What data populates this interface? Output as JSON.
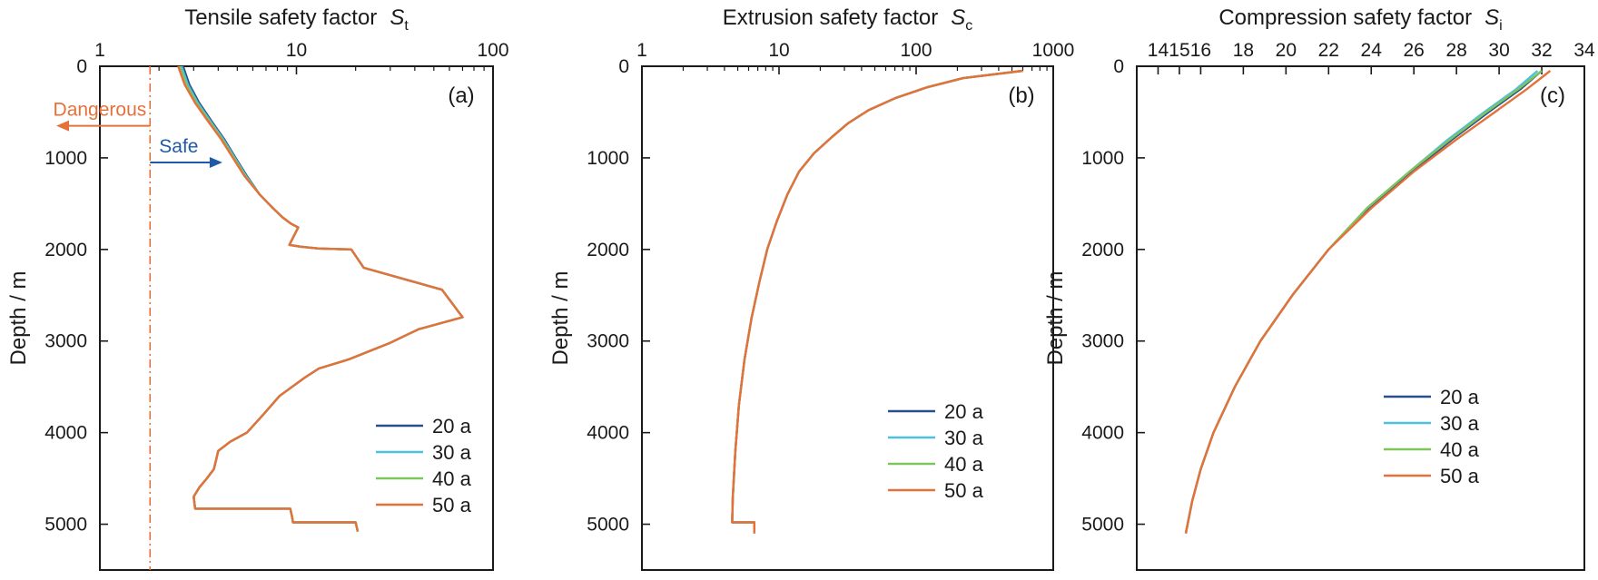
{
  "chart_data": [
    {
      "type": "line",
      "panel_label": "(a)",
      "xlabel": "Tensile safety factor",
      "xlabel_symbol": "S",
      "xlabel_subscript": "t",
      "ylabel": "Depth / m",
      "x_scale": "log",
      "xlim": [
        1,
        100
      ],
      "x_ticks": [
        "1",
        "10",
        "100"
      ],
      "ylim": [
        5500,
        0
      ],
      "y_ticks": [
        "0",
        "1000",
        "2000",
        "3000",
        "4000",
        "5000"
      ],
      "x_axis_position": "top",
      "legend_position": "lower-right",
      "series": [
        {
          "name": "20 a",
          "color": "#2b4f8c",
          "x": [
            2.65,
            2.85,
            3.2,
            3.7,
            4.3,
            4.9,
            5.6,
            6.5,
            7.6,
            8.5,
            9.4,
            10.2,
            9.2,
            10.5,
            13.0,
            19.0,
            22.0,
            55.0,
            70.0,
            42.0,
            35.0,
            30.0,
            18.5,
            13.0,
            11.0,
            9.5,
            8.2,
            6.8,
            5.6,
            4.6,
            4.0,
            3.9,
            3.8,
            3.5,
            3.2,
            3.0,
            3.05,
            9.3,
            9.5,
            9.6,
            20.0,
            20.5
          ],
          "y": [
            0,
            200,
            400,
            600,
            800,
            1000,
            1200,
            1400,
            1550,
            1650,
            1720,
            1760,
            1950,
            1970,
            1990,
            2000,
            2200,
            2440,
            2740,
            2870,
            2950,
            3020,
            3200,
            3300,
            3400,
            3500,
            3600,
            3800,
            4000,
            4100,
            4200,
            4300,
            4400,
            4500,
            4600,
            4700,
            4830,
            4830,
            4920,
            4980,
            4980,
            5080
          ]
        },
        {
          "name": "30 a",
          "color": "#4fbfe0",
          "x": [
            2.6,
            2.8,
            3.15,
            3.65,
            4.25,
            4.85,
            5.55,
            6.5,
            7.6,
            8.5,
            9.4,
            10.2,
            9.2,
            10.5,
            13.0,
            19.0,
            22.0,
            55.0,
            70.0,
            42.0,
            35.0,
            30.0,
            18.5,
            13.0,
            11.0,
            9.5,
            8.2,
            6.8,
            5.6,
            4.6,
            4.0,
            3.9,
            3.8,
            3.5,
            3.2,
            3.0,
            3.05,
            9.3,
            9.5,
            9.6,
            20.0,
            20.5
          ],
          "y": [
            0,
            200,
            400,
            600,
            800,
            1000,
            1200,
            1400,
            1550,
            1650,
            1720,
            1760,
            1950,
            1970,
            1990,
            2000,
            2200,
            2440,
            2740,
            2870,
            2950,
            3020,
            3200,
            3300,
            3400,
            3500,
            3600,
            3800,
            4000,
            4100,
            4200,
            4300,
            4400,
            4500,
            4600,
            4700,
            4830,
            4830,
            4920,
            4980,
            4980,
            5080
          ]
        },
        {
          "name": "40 a",
          "color": "#7ec55a",
          "x": [
            2.55,
            2.75,
            3.1,
            3.6,
            4.2,
            4.8,
            5.5,
            6.5,
            7.6,
            8.5,
            9.4,
            10.2,
            9.2,
            10.5,
            13.0,
            19.0,
            22.0,
            55.0,
            70.0,
            42.0,
            35.0,
            30.0,
            18.5,
            13.0,
            11.0,
            9.5,
            8.2,
            6.8,
            5.6,
            4.6,
            4.0,
            3.9,
            3.8,
            3.5,
            3.2,
            3.0,
            3.05,
            9.3,
            9.5,
            9.6,
            20.0,
            20.5
          ],
          "y": [
            0,
            200,
            400,
            600,
            800,
            1000,
            1200,
            1400,
            1550,
            1650,
            1720,
            1760,
            1950,
            1970,
            1990,
            2000,
            2200,
            2440,
            2740,
            2870,
            2950,
            3020,
            3200,
            3300,
            3400,
            3500,
            3600,
            3800,
            4000,
            4100,
            4200,
            4300,
            4400,
            4500,
            4600,
            4700,
            4830,
            4830,
            4920,
            4980,
            4980,
            5080
          ]
        },
        {
          "name": "50 a",
          "color": "#e5713a",
          "x": [
            2.5,
            2.7,
            3.05,
            3.55,
            4.15,
            4.75,
            5.45,
            6.5,
            7.6,
            8.5,
            9.4,
            10.2,
            9.2,
            10.5,
            13.0,
            19.0,
            22.0,
            55.0,
            70.0,
            42.0,
            35.0,
            30.0,
            18.5,
            13.0,
            11.0,
            9.5,
            8.2,
            6.8,
            5.6,
            4.6,
            4.0,
            3.9,
            3.8,
            3.5,
            3.2,
            3.0,
            3.05,
            9.3,
            9.5,
            9.6,
            20.0,
            20.5
          ],
          "y": [
            0,
            200,
            400,
            600,
            800,
            1000,
            1200,
            1400,
            1550,
            1650,
            1720,
            1760,
            1950,
            1970,
            1990,
            2000,
            2200,
            2440,
            2740,
            2870,
            2950,
            3020,
            3200,
            3300,
            3400,
            3500,
            3600,
            3800,
            4000,
            4100,
            4200,
            4300,
            4400,
            4500,
            4600,
            4700,
            4830,
            4830,
            4920,
            4980,
            4980,
            5080
          ]
        }
      ],
      "reference_line": {
        "x": 1.8,
        "color": "#e5713a",
        "style": "dash-dot"
      },
      "annotations": [
        {
          "text": "Dangerous",
          "color": "#e5713a",
          "y": 650,
          "x_from": 1.8,
          "direction": "left"
        },
        {
          "text": "Safe",
          "color": "#1f5aa6",
          "y": 1050,
          "x_from": 1.8,
          "x_to": 4.2,
          "direction": "right"
        }
      ]
    },
    {
      "type": "line",
      "panel_label": "(b)",
      "xlabel": "Extrusion safety factor",
      "xlabel_symbol": "S",
      "xlabel_subscript": "c",
      "ylabel": "Depth / m",
      "x_scale": "log",
      "xlim": [
        1,
        1000
      ],
      "x_ticks": [
        "1",
        "10",
        "100",
        "1000"
      ],
      "ylim": [
        5500,
        0
      ],
      "y_ticks": [
        "0",
        "1000",
        "2000",
        "3000",
        "4000",
        "5000"
      ],
      "x_axis_position": "top",
      "legend_position": "lower-right",
      "series": [
        {
          "name": "20 a",
          "color": "#2b4f8c",
          "x": [
            600,
            220,
            120,
            70,
            45,
            32,
            24,
            18,
            14,
            11.5,
            9.6,
            8.2,
            7.2,
            6.3,
            5.6,
            5.1,
            4.8,
            4.6,
            4.55,
            6.6,
            6.6
          ],
          "y": [
            50,
            130,
            230,
            350,
            480,
            620,
            780,
            950,
            1150,
            1400,
            1700,
            2000,
            2350,
            2750,
            3200,
            3700,
            4200,
            4700,
            4980,
            4980,
            5100
          ]
        },
        {
          "name": "30 a",
          "color": "#4fbfe0",
          "x": [
            600,
            220,
            120,
            70,
            45,
            32,
            24,
            18,
            14,
            11.5,
            9.6,
            8.2,
            7.2,
            6.3,
            5.6,
            5.1,
            4.8,
            4.6,
            4.55,
            6.6,
            6.6
          ],
          "y": [
            50,
            130,
            230,
            350,
            480,
            620,
            780,
            950,
            1150,
            1400,
            1700,
            2000,
            2350,
            2750,
            3200,
            3700,
            4200,
            4700,
            4980,
            4980,
            5100
          ]
        },
        {
          "name": "40 a",
          "color": "#7ec55a",
          "x": [
            600,
            220,
            120,
            70,
            45,
            32,
            24,
            18,
            14,
            11.5,
            9.6,
            8.2,
            7.2,
            6.3,
            5.6,
            5.1,
            4.8,
            4.6,
            4.55,
            6.6,
            6.6
          ],
          "y": [
            50,
            130,
            230,
            350,
            480,
            620,
            780,
            950,
            1150,
            1400,
            1700,
            2000,
            2350,
            2750,
            3200,
            3700,
            4200,
            4700,
            4980,
            4980,
            5100
          ]
        },
        {
          "name": "50 a",
          "color": "#e5713a",
          "x": [
            600,
            220,
            120,
            70,
            45,
            32,
            24,
            18,
            14,
            11.5,
            9.6,
            8.2,
            7.2,
            6.3,
            5.6,
            5.1,
            4.8,
            4.6,
            4.55,
            6.6,
            6.6
          ],
          "y": [
            50,
            130,
            230,
            350,
            480,
            620,
            780,
            950,
            1150,
            1400,
            1700,
            2000,
            2350,
            2750,
            3200,
            3700,
            4200,
            4700,
            4980,
            4980,
            5100
          ]
        }
      ]
    },
    {
      "type": "line",
      "panel_label": "(c)",
      "xlabel": "Compression safety factor",
      "xlabel_symbol": "S",
      "xlabel_subscript": "i",
      "ylabel": "Depth / m",
      "x_scale": "linear",
      "xlim": [
        13,
        34
      ],
      "x_ticks": [
        "14",
        "15",
        "16",
        "18",
        "20",
        "22",
        "24",
        "26",
        "28",
        "30",
        "32",
        "34"
      ],
      "ylim": [
        5500,
        0
      ],
      "y_ticks": [
        "0",
        "1000",
        "2000",
        "3000",
        "4000",
        "5000"
      ],
      "x_axis_position": "top",
      "legend_position": "center-right",
      "series": [
        {
          "name": "20 a",
          "color": "#2b4f8c",
          "x": [
            32.0,
            31.0,
            29.5,
            27.8,
            25.9,
            23.9,
            22.0,
            20.3,
            18.8,
            17.6,
            16.6,
            16.0,
            15.6,
            15.3
          ],
          "y": [
            50,
            250,
            500,
            800,
            1150,
            1550,
            2000,
            2500,
            3000,
            3500,
            4000,
            4400,
            4750,
            5100
          ]
        },
        {
          "name": "30 a",
          "color": "#4fbfe0",
          "x": [
            31.8,
            30.8,
            29.3,
            27.6,
            25.8,
            23.8,
            22.0,
            20.3,
            18.8,
            17.6,
            16.6,
            16.0,
            15.6,
            15.3
          ],
          "y": [
            50,
            250,
            500,
            800,
            1150,
            1550,
            2000,
            2500,
            3000,
            3500,
            4000,
            4400,
            4750,
            5100
          ]
        },
        {
          "name": "40 a",
          "color": "#7ec55a",
          "x": [
            32.0,
            30.9,
            29.4,
            27.7,
            25.8,
            23.8,
            22.0,
            20.3,
            18.8,
            17.6,
            16.6,
            16.0,
            15.6,
            15.3
          ],
          "y": [
            50,
            250,
            500,
            800,
            1150,
            1550,
            2000,
            2500,
            3000,
            3500,
            4000,
            4400,
            4750,
            5100
          ]
        },
        {
          "name": "50 a",
          "color": "#e5713a",
          "x": [
            32.4,
            31.3,
            29.8,
            28.0,
            26.0,
            24.0,
            22.0,
            20.3,
            18.8,
            17.6,
            16.6,
            16.0,
            15.6,
            15.3
          ],
          "y": [
            50,
            250,
            500,
            800,
            1150,
            1550,
            2000,
            2500,
            3000,
            3500,
            4000,
            4400,
            4750,
            5100
          ]
        }
      ]
    }
  ]
}
